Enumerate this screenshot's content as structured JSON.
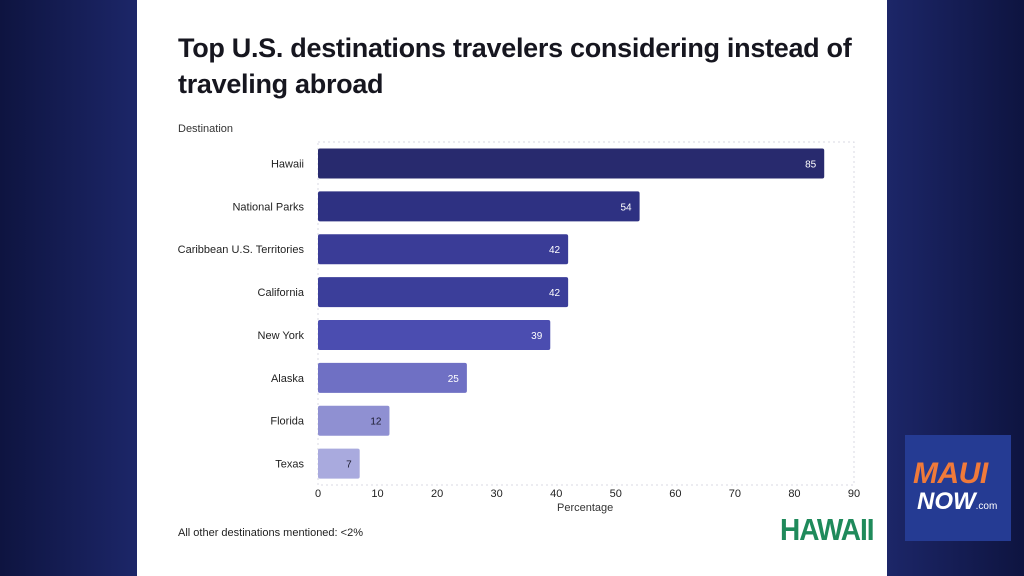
{
  "chart_data": {
    "type": "bar",
    "orientation": "horizontal",
    "title": "Top U.S. destinations travelers considering instead of traveling abroad",
    "ylabel": "Destination",
    "xlabel": "Percentage",
    "categories": [
      "Hawaii",
      "National Parks",
      "Caribbean U.S. Territories",
      "California",
      "New York",
      "Alaska",
      "Florida",
      "Texas"
    ],
    "values": [
      85,
      54,
      42,
      42,
      39,
      25,
      12,
      7
    ],
    "value_labels": [
      "85",
      "54",
      "42",
      "42",
      "39",
      "25",
      "12",
      "7"
    ],
    "xlim": [
      0,
      90
    ],
    "xticks": [
      "0",
      "10",
      "20",
      "30",
      "40",
      "50",
      "60",
      "70",
      "80",
      "90"
    ],
    "bar_colors": [
      "#282a6e",
      "#2e3182",
      "#3a3c97",
      "#3b3e9a",
      "#4b4db0",
      "#6f70c4",
      "#8f90d2",
      "#a9aade"
    ],
    "label_colors": [
      "#ffffff",
      "#ffffff",
      "#ffffff",
      "#ffffff",
      "#ffffff",
      "#ffffff",
      "#1a1a2e",
      "#1a1a2e"
    ],
    "grid": false,
    "legend": "none",
    "footnote": "All other destinations mentioned: <2%"
  },
  "branding": {
    "hawaii_logo": "HAWAII",
    "maui_line1": "MAUI",
    "maui_line2": "NOW",
    "maui_suffix": ".com",
    "accent": "#f07a3a",
    "badge_color": "#253b93",
    "logo_green": "#1f8a5b"
  }
}
